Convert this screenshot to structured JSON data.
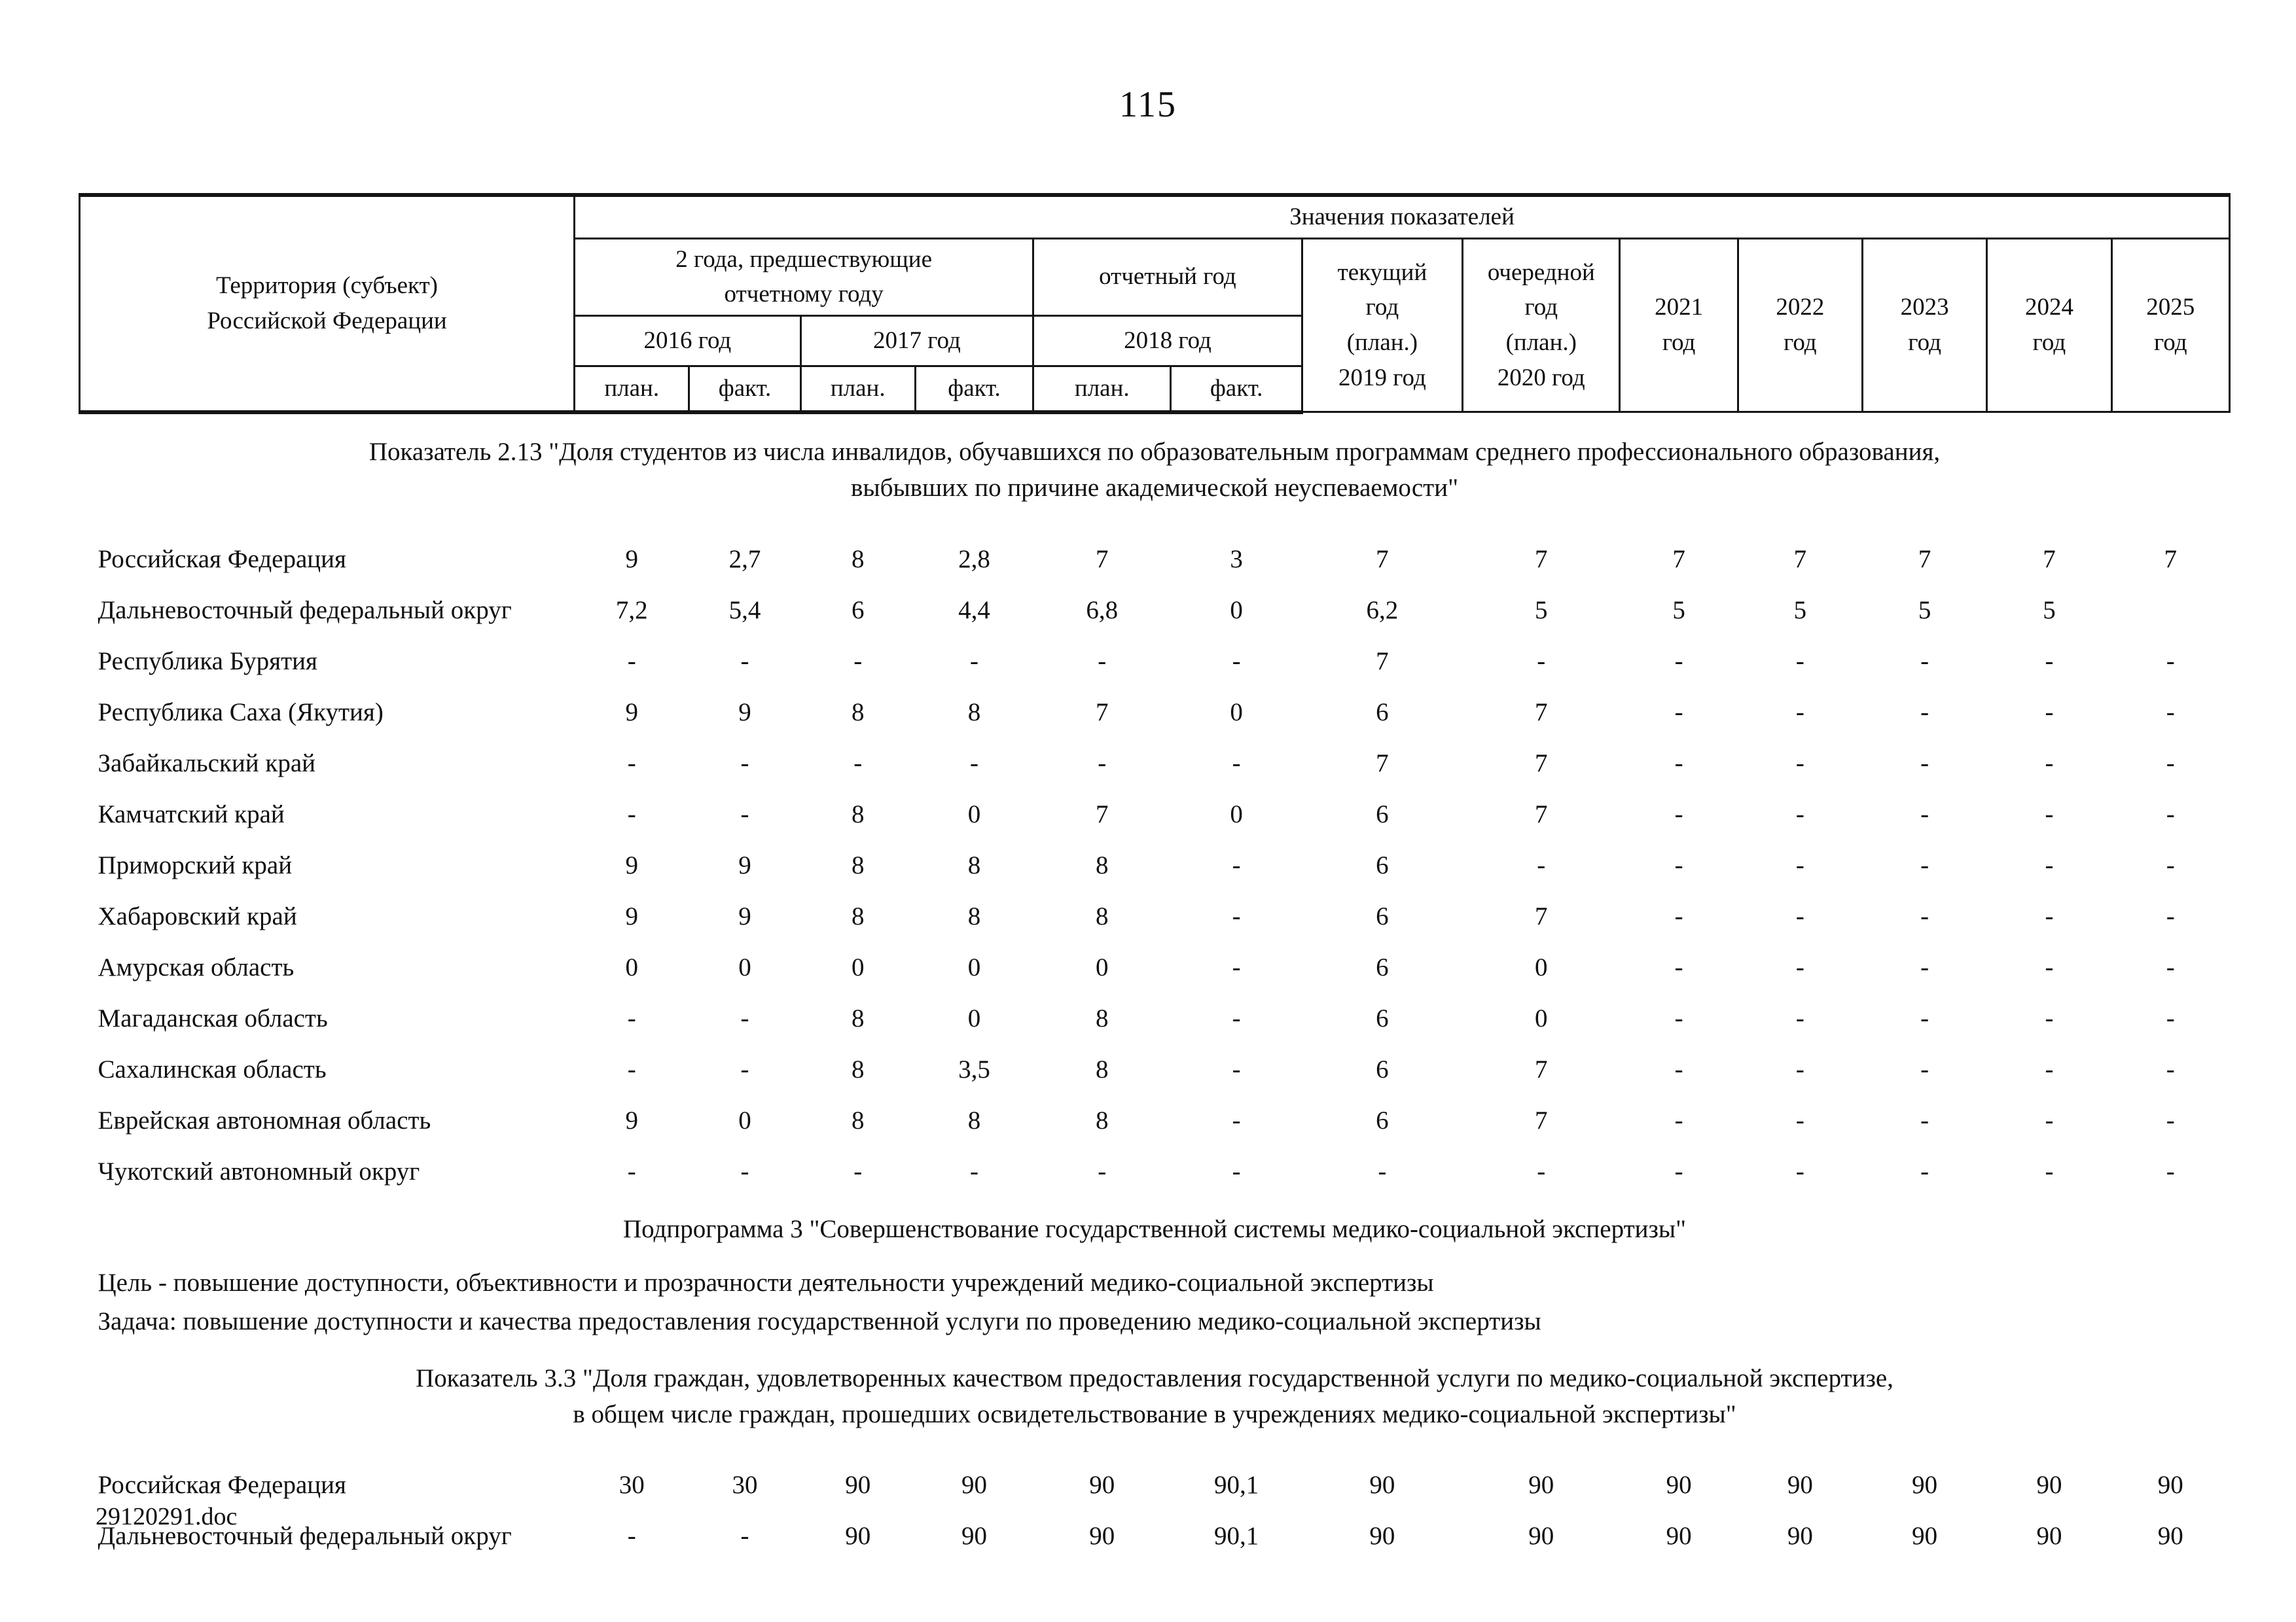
{
  "page": {
    "number": "115",
    "footer": "29120291.doc"
  },
  "colors": {
    "ink": "#0f0f0f",
    "paper": "#ffffff"
  },
  "table": {
    "header": {
      "territory": "Территория (субъект)\nРоссийской Федерации",
      "values_title": "Значения показателей",
      "group_prev": "2 года, предшествующие\nотчетному году",
      "group_report": "отчетный год",
      "year_2016": "2016 год",
      "year_2017": "2017 год",
      "year_2018": "2018 год",
      "plan": "план.",
      "fact": "факт.",
      "current_year": "текущий\nгод\n(план.)\n2019 год",
      "next_year": "очередной\nгод\n(план.)\n2020 год",
      "year_2021": "2021\nгод",
      "year_2022": "2022\nгод",
      "year_2023": "2023\nгод",
      "year_2024": "2024\nгод",
      "year_2025": "2025\nгод"
    },
    "blocks": [
      {
        "type": "indicator",
        "lines": [
          "Показатель 2.13 \"Доля студентов из числа инвалидов, обучавшихся по образовательным программам среднего профессионального образования,",
          "выбывших по причине академической неуспеваемости\""
        ],
        "rows": [
          {
            "name": "Российская Федерация",
            "values": [
              "9",
              "2,7",
              "8",
              "2,8",
              "7",
              "3",
              "7",
              "7",
              "7",
              "7",
              "7",
              "7",
              "7"
            ]
          },
          {
            "name": "Дальневосточный федеральный округ",
            "values": [
              "7,2",
              "5,4",
              "6",
              "4,4",
              "6,8",
              "0",
              "6,2",
              "5",
              "5",
              "5",
              "5",
              "5",
              ""
            ]
          },
          {
            "name": "Республика Бурятия",
            "values": [
              "-",
              "-",
              "-",
              "-",
              "-",
              "-",
              "7",
              "-",
              "-",
              "-",
              "-",
              "-",
              "-"
            ]
          },
          {
            "name": "Республика Саха (Якутия)",
            "values": [
              "9",
              "9",
              "8",
              "8",
              "7",
              "0",
              "6",
              "7",
              "-",
              "-",
              "-",
              "-",
              "-"
            ]
          },
          {
            "name": "Забайкальский край",
            "values": [
              "-",
              "-",
              "-",
              "-",
              "-",
              "-",
              "7",
              "7",
              "-",
              "-",
              "-",
              "-",
              "-"
            ]
          },
          {
            "name": "Камчатский край",
            "values": [
              "-",
              "-",
              "8",
              "0",
              "7",
              "0",
              "6",
              "7",
              "-",
              "-",
              "-",
              "-",
              "-"
            ]
          },
          {
            "name": "Приморский край",
            "values": [
              "9",
              "9",
              "8",
              "8",
              "8",
              "-",
              "6",
              "-",
              "-",
              "-",
              "-",
              "-",
              "-"
            ]
          },
          {
            "name": "Хабаровский край",
            "values": [
              "9",
              "9",
              "8",
              "8",
              "8",
              "-",
              "6",
              "7",
              "-",
              "-",
              "-",
              "-",
              "-"
            ]
          },
          {
            "name": "Амурская область",
            "values": [
              "0",
              "0",
              "0",
              "0",
              "0",
              "-",
              "6",
              "0",
              "-",
              "-",
              "-",
              "-",
              "-"
            ]
          },
          {
            "name": "Магаданская область",
            "values": [
              "-",
              "-",
              "8",
              "0",
              "8",
              "-",
              "6",
              "0",
              "-",
              "-",
              "-",
              "-",
              "-"
            ]
          },
          {
            "name": "Сахалинская область",
            "values": [
              "-",
              "-",
              "8",
              "3,5",
              "8",
              "-",
              "6",
              "7",
              "-",
              "-",
              "-",
              "-",
              "-"
            ]
          },
          {
            "name": "Еврейская автономная область",
            "values": [
              "9",
              "0",
              "8",
              "8",
              "8",
              "-",
              "6",
              "7",
              "-",
              "-",
              "-",
              "-",
              "-"
            ]
          },
          {
            "name": "Чукотский автономный округ",
            "values": [
              "-",
              "-",
              "-",
              "-",
              "-",
              "-",
              "-",
              "-",
              "-",
              "-",
              "-",
              "-",
              "-"
            ]
          }
        ]
      },
      {
        "type": "subprogram",
        "text": "Подпрограмма 3 \"Совершенствование государственной системы медико-социальной экспертизы\""
      },
      {
        "type": "goal",
        "text": "Цель - повышение доступности, объективности и прозрачности деятельности учреждений медико-социальной экспертизы"
      },
      {
        "type": "task",
        "text": "Задача: повышение доступности и качества предоставления государственной услуги по проведению медико-социальной экспертизы"
      },
      {
        "type": "indicator",
        "lines": [
          "Показатель 3.3 \"Доля граждан, удовлетворенных качеством предоставления государственной услуги по медико-социальной экспертизе,",
          "в общем числе граждан, прошедших освидетельствование в учреждениях медико-социальной экспертизы\""
        ],
        "rows": [
          {
            "name": "Российская Федерация",
            "values": [
              "30",
              "30",
              "90",
              "90",
              "90",
              "90,1",
              "90",
              "90",
              "90",
              "90",
              "90",
              "90",
              "90"
            ]
          },
          {
            "name": "Дальневосточный федеральный округ",
            "values": [
              "-",
              "-",
              "90",
              "90",
              "90",
              "90,1",
              "90",
              "90",
              "90",
              "90",
              "90",
              "90",
              "90"
            ]
          }
        ]
      }
    ]
  }
}
